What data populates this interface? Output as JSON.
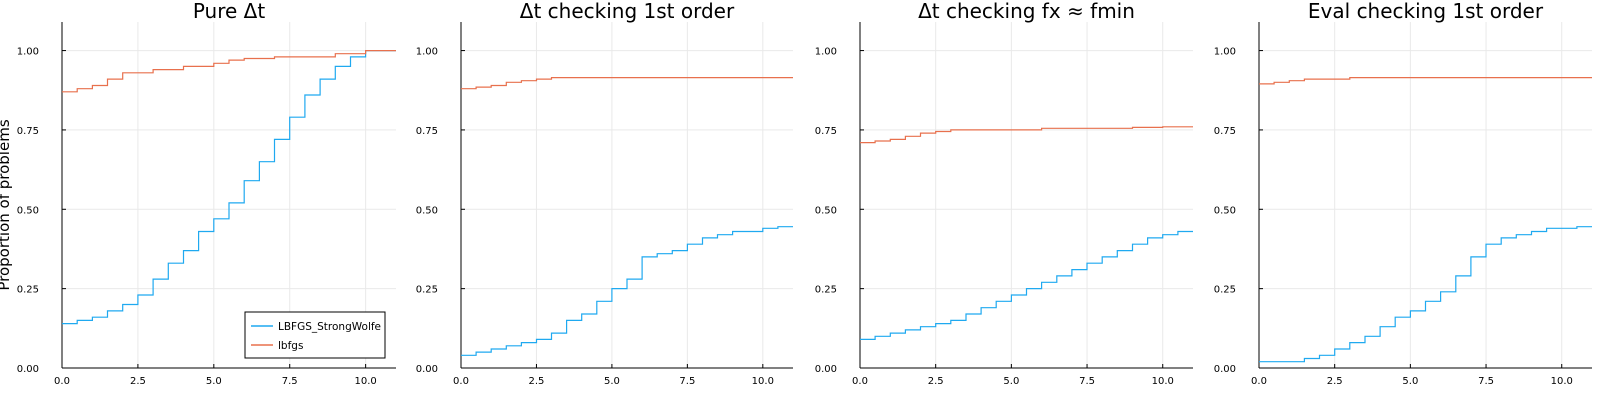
{
  "colors": {
    "LBFGS_StrongWolfe": "#1fa9f0",
    "lbfgs": "#e8704d"
  },
  "ylabel": "Proportion of problems",
  "legend": {
    "placement": "bottom-right",
    "panel": 0
  },
  "chart_data": [
    {
      "type": "line",
      "step": true,
      "title": "Pure Δt",
      "xlabel": "",
      "ylabel": "Proportion of problems",
      "xlim": [
        0,
        11
      ],
      "ylim": [
        0,
        1.09
      ],
      "xticks": [
        0,
        2.5,
        5,
        7.5,
        10
      ],
      "xtick_labels": [
        "0.0",
        "2.5",
        "5.0",
        "7.5",
        "10.0"
      ],
      "yticks": [
        0,
        0.25,
        0.5,
        0.75,
        1
      ],
      "ytick_labels": [
        "0.00",
        "0.25",
        "0.50",
        "0.75",
        "1.00"
      ],
      "grid": true,
      "series": [
        {
          "name": "LBFGS_StrongWolfe",
          "x": [
            0,
            0.5,
            1.0,
            1.5,
            2.0,
            2.5,
            3.0,
            3.5,
            4.0,
            4.5,
            5.0,
            5.5,
            6.0,
            6.5,
            7.0,
            7.5,
            8.0,
            8.5,
            9.0,
            9.5,
            10.0,
            10.5,
            11.0
          ],
          "y": [
            0.14,
            0.15,
            0.16,
            0.18,
            0.2,
            0.23,
            0.28,
            0.33,
            0.37,
            0.43,
            0.47,
            0.52,
            0.59,
            0.65,
            0.72,
            0.79,
            0.86,
            0.91,
            0.95,
            0.98,
            1.0,
            1.0,
            1.0
          ]
        },
        {
          "name": "lbfgs",
          "x": [
            0,
            0.5,
            1.0,
            1.5,
            2.0,
            3.0,
            4.0,
            5.0,
            5.5,
            6.0,
            7.0,
            8.0,
            9.0,
            10.0,
            11.0
          ],
          "y": [
            0.87,
            0.88,
            0.89,
            0.91,
            0.93,
            0.94,
            0.95,
            0.96,
            0.97,
            0.975,
            0.98,
            0.98,
            0.99,
            1.0,
            1.0
          ]
        }
      ]
    },
    {
      "type": "line",
      "step": true,
      "title": "Δt checking 1st order",
      "xlabel": "",
      "ylabel": "",
      "xlim": [
        0,
        11
      ],
      "ylim": [
        0,
        1.09
      ],
      "xticks": [
        0,
        2.5,
        5,
        7.5,
        10
      ],
      "xtick_labels": [
        "0.0",
        "2.5",
        "5.0",
        "7.5",
        "10.0"
      ],
      "yticks": [
        0,
        0.25,
        0.5,
        0.75,
        1
      ],
      "ytick_labels": [
        "0.00",
        "0.25",
        "0.50",
        "0.75",
        "1.00"
      ],
      "grid": true,
      "series": [
        {
          "name": "LBFGS_StrongWolfe",
          "x": [
            0,
            0.5,
            1.0,
            1.5,
            2.0,
            2.5,
            3.0,
            3.5,
            4.0,
            4.5,
            5.0,
            5.5,
            6.0,
            6.5,
            7.0,
            7.5,
            8.0,
            8.5,
            9.0,
            9.5,
            10.0,
            10.5,
            11.0
          ],
          "y": [
            0.04,
            0.05,
            0.06,
            0.07,
            0.08,
            0.09,
            0.11,
            0.15,
            0.17,
            0.21,
            0.25,
            0.28,
            0.35,
            0.36,
            0.37,
            0.39,
            0.41,
            0.42,
            0.43,
            0.43,
            0.44,
            0.445,
            0.445
          ]
        },
        {
          "name": "lbfgs",
          "x": [
            0,
            0.5,
            1.0,
            1.5,
            2.0,
            2.5,
            3.0,
            4.0,
            6.0,
            8.0,
            10.0,
            11.0
          ],
          "y": [
            0.88,
            0.885,
            0.89,
            0.9,
            0.905,
            0.91,
            0.915,
            0.915,
            0.915,
            0.915,
            0.915,
            0.915
          ]
        }
      ]
    },
    {
      "type": "line",
      "step": true,
      "title": "Δt checking fx ≈ fmin",
      "xlabel": "",
      "ylabel": "",
      "xlim": [
        0,
        11
      ],
      "ylim": [
        0,
        1.09
      ],
      "xticks": [
        0,
        2.5,
        5,
        7.5,
        10
      ],
      "xtick_labels": [
        "0.0",
        "2.5",
        "5.0",
        "7.5",
        "10.0"
      ],
      "yticks": [
        0,
        0.25,
        0.5,
        0.75,
        1
      ],
      "ytick_labels": [
        "0.00",
        "0.25",
        "0.50",
        "0.75",
        "1.00"
      ],
      "grid": true,
      "series": [
        {
          "name": "LBFGS_StrongWolfe",
          "x": [
            0,
            0.5,
            1.0,
            1.5,
            2.0,
            2.5,
            3.0,
            3.5,
            4.0,
            4.5,
            5.0,
            5.5,
            6.0,
            6.5,
            7.0,
            7.5,
            8.0,
            8.5,
            9.0,
            9.5,
            10.0,
            10.5,
            11.0
          ],
          "y": [
            0.09,
            0.1,
            0.11,
            0.12,
            0.13,
            0.14,
            0.15,
            0.17,
            0.19,
            0.21,
            0.23,
            0.25,
            0.27,
            0.29,
            0.31,
            0.33,
            0.35,
            0.37,
            0.39,
            0.41,
            0.42,
            0.43,
            0.43
          ]
        },
        {
          "name": "lbfgs",
          "x": [
            0,
            0.5,
            1.0,
            1.5,
            2.0,
            2.5,
            3.0,
            4.0,
            5.0,
            6.0,
            7.0,
            8.0,
            9.0,
            10.0,
            11.0
          ],
          "y": [
            0.71,
            0.715,
            0.72,
            0.73,
            0.74,
            0.745,
            0.75,
            0.75,
            0.75,
            0.755,
            0.755,
            0.755,
            0.758,
            0.76,
            0.76
          ]
        }
      ]
    },
    {
      "type": "line",
      "step": true,
      "title": "Eval checking 1st order",
      "xlabel": "",
      "ylabel": "",
      "xlim": [
        0,
        11
      ],
      "ylim": [
        0,
        1.09
      ],
      "xticks": [
        0,
        2.5,
        5,
        7.5,
        10
      ],
      "xtick_labels": [
        "0.0",
        "2.5",
        "5.0",
        "7.5",
        "10.0"
      ],
      "yticks": [
        0,
        0.25,
        0.5,
        0.75,
        1
      ],
      "ytick_labels": [
        "0.00",
        "0.25",
        "0.50",
        "0.75",
        "1.00"
      ],
      "grid": true,
      "series": [
        {
          "name": "LBFGS_StrongWolfe",
          "x": [
            0,
            0.5,
            1.0,
            1.5,
            2.0,
            2.5,
            3.0,
            3.5,
            4.0,
            4.5,
            5.0,
            5.5,
            6.0,
            6.5,
            7.0,
            7.5,
            8.0,
            8.5,
            9.0,
            9.5,
            10.0,
            10.5,
            11.0
          ],
          "y": [
            0.02,
            0.02,
            0.02,
            0.03,
            0.04,
            0.06,
            0.08,
            0.1,
            0.13,
            0.16,
            0.18,
            0.21,
            0.24,
            0.29,
            0.35,
            0.39,
            0.41,
            0.42,
            0.43,
            0.44,
            0.44,
            0.445,
            0.445
          ]
        },
        {
          "name": "lbfgs",
          "x": [
            0,
            0.5,
            1.0,
            1.5,
            2.0,
            3.0,
            4.0,
            6.0,
            8.0,
            10.0,
            11.0
          ],
          "y": [
            0.895,
            0.9,
            0.905,
            0.91,
            0.91,
            0.915,
            0.915,
            0.915,
            0.915,
            0.915,
            0.915
          ]
        }
      ]
    }
  ]
}
